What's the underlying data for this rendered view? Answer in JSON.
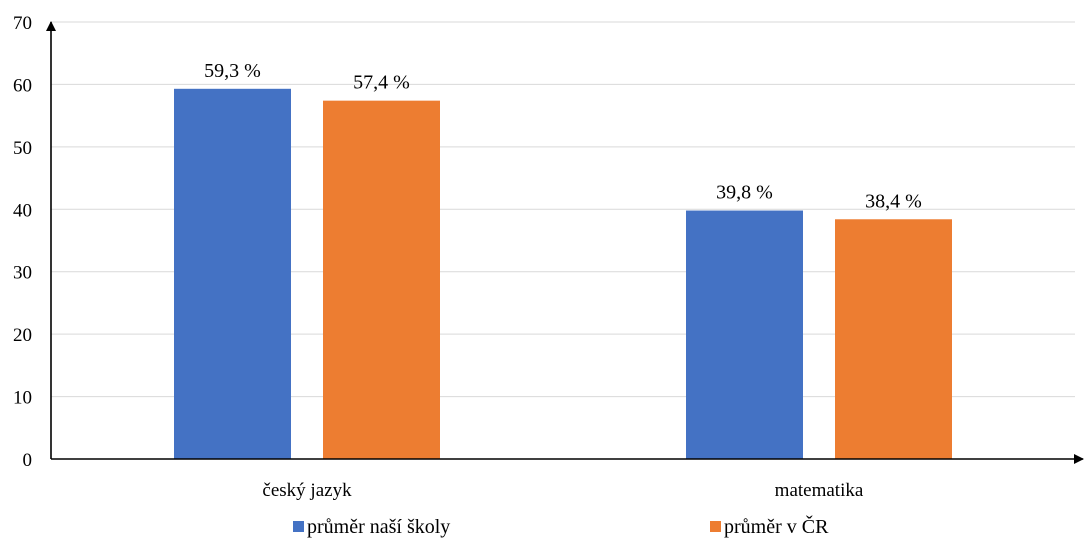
{
  "chart_data": {
    "type": "bar",
    "categories": [
      "český jazyk",
      "matematika"
    ],
    "series": [
      {
        "name": "průměr naší školy",
        "color": "#4472C4",
        "values": [
          59.3,
          39.8
        ],
        "labels": [
          "59,3 %",
          "39,8 %"
        ]
      },
      {
        "name": "průměr v ČR",
        "color": "#ED7D31",
        "values": [
          57.4,
          38.4
        ],
        "labels": [
          "57,4 %",
          "38,4 %"
        ]
      }
    ],
    "yticks": [
      "0",
      "10",
      "20",
      "30",
      "40",
      "50",
      "60",
      "70"
    ],
    "ylim": [
      0,
      70
    ],
    "grid": true,
    "legend_position": "bottom"
  }
}
